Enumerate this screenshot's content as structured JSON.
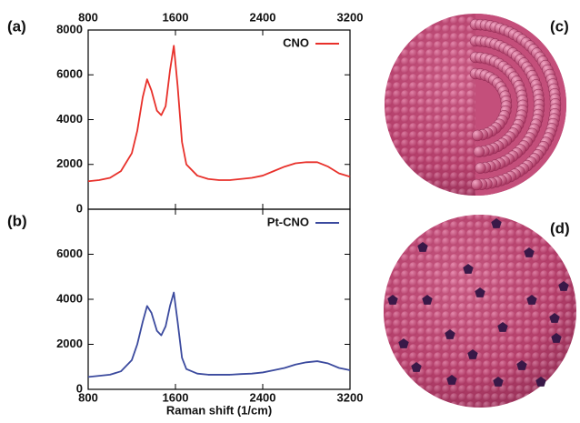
{
  "chart_data": [
    {
      "type": "line",
      "label": "(a)",
      "xaxis": "top",
      "legend": "upper right",
      "xlim": [
        800,
        3200
      ],
      "xticks": [
        800,
        1600,
        2400,
        3200
      ],
      "ylim": [
        0,
        8000
      ],
      "yticks": [
        0,
        2000,
        4000,
        6000,
        8000
      ],
      "x": [
        800,
        900,
        1000,
        1100,
        1200,
        1250,
        1300,
        1340,
        1380,
        1430,
        1470,
        1510,
        1550,
        1585,
        1620,
        1660,
        1700,
        1800,
        1900,
        2000,
        2100,
        2200,
        2300,
        2400,
        2500,
        2600,
        2700,
        2800,
        2900,
        3000,
        3100,
        3200
      ],
      "series": [
        {
          "name": "CNO",
          "color": "#e8302a",
          "values": [
            1250,
            1300,
            1400,
            1700,
            2500,
            3500,
            5000,
            5800,
            5300,
            4400,
            4200,
            4600,
            6200,
            7300,
            5500,
            3000,
            2000,
            1500,
            1350,
            1300,
            1300,
            1350,
            1400,
            1500,
            1700,
            1900,
            2050,
            2100,
            2100,
            1900,
            1600,
            1450
          ]
        }
      ]
    },
    {
      "type": "line",
      "label": "(b)",
      "xaxis": "bottom",
      "legend": "upper right",
      "xlabel": "Raman shift (1/cm)",
      "xlim": [
        800,
        3200
      ],
      "xticks": [
        800,
        1600,
        2400,
        3200
      ],
      "ylim": [
        0,
        8000
      ],
      "yticks": [
        0,
        2000,
        4000,
        6000
      ],
      "x": [
        800,
        900,
        1000,
        1100,
        1200,
        1250,
        1300,
        1340,
        1380,
        1430,
        1470,
        1510,
        1550,
        1585,
        1620,
        1660,
        1700,
        1800,
        1900,
        2000,
        2100,
        2200,
        2300,
        2400,
        2500,
        2600,
        2700,
        2800,
        2900,
        3000,
        3100,
        3200
      ],
      "series": [
        {
          "name": "Pt-CNO",
          "color": "#3b4a9e",
          "values": [
            550,
            600,
            650,
            800,
            1300,
            2000,
            3000,
            3700,
            3400,
            2600,
            2400,
            2800,
            3700,
            4300,
            3000,
            1400,
            900,
            700,
            650,
            650,
            650,
            680,
            700,
            750,
            850,
            950,
            1100,
            1200,
            1250,
            1150,
            950,
            850
          ]
        }
      ]
    }
  ],
  "images": [
    {
      "label": "(c)"
    },
    {
      "label": "(d)"
    }
  ]
}
